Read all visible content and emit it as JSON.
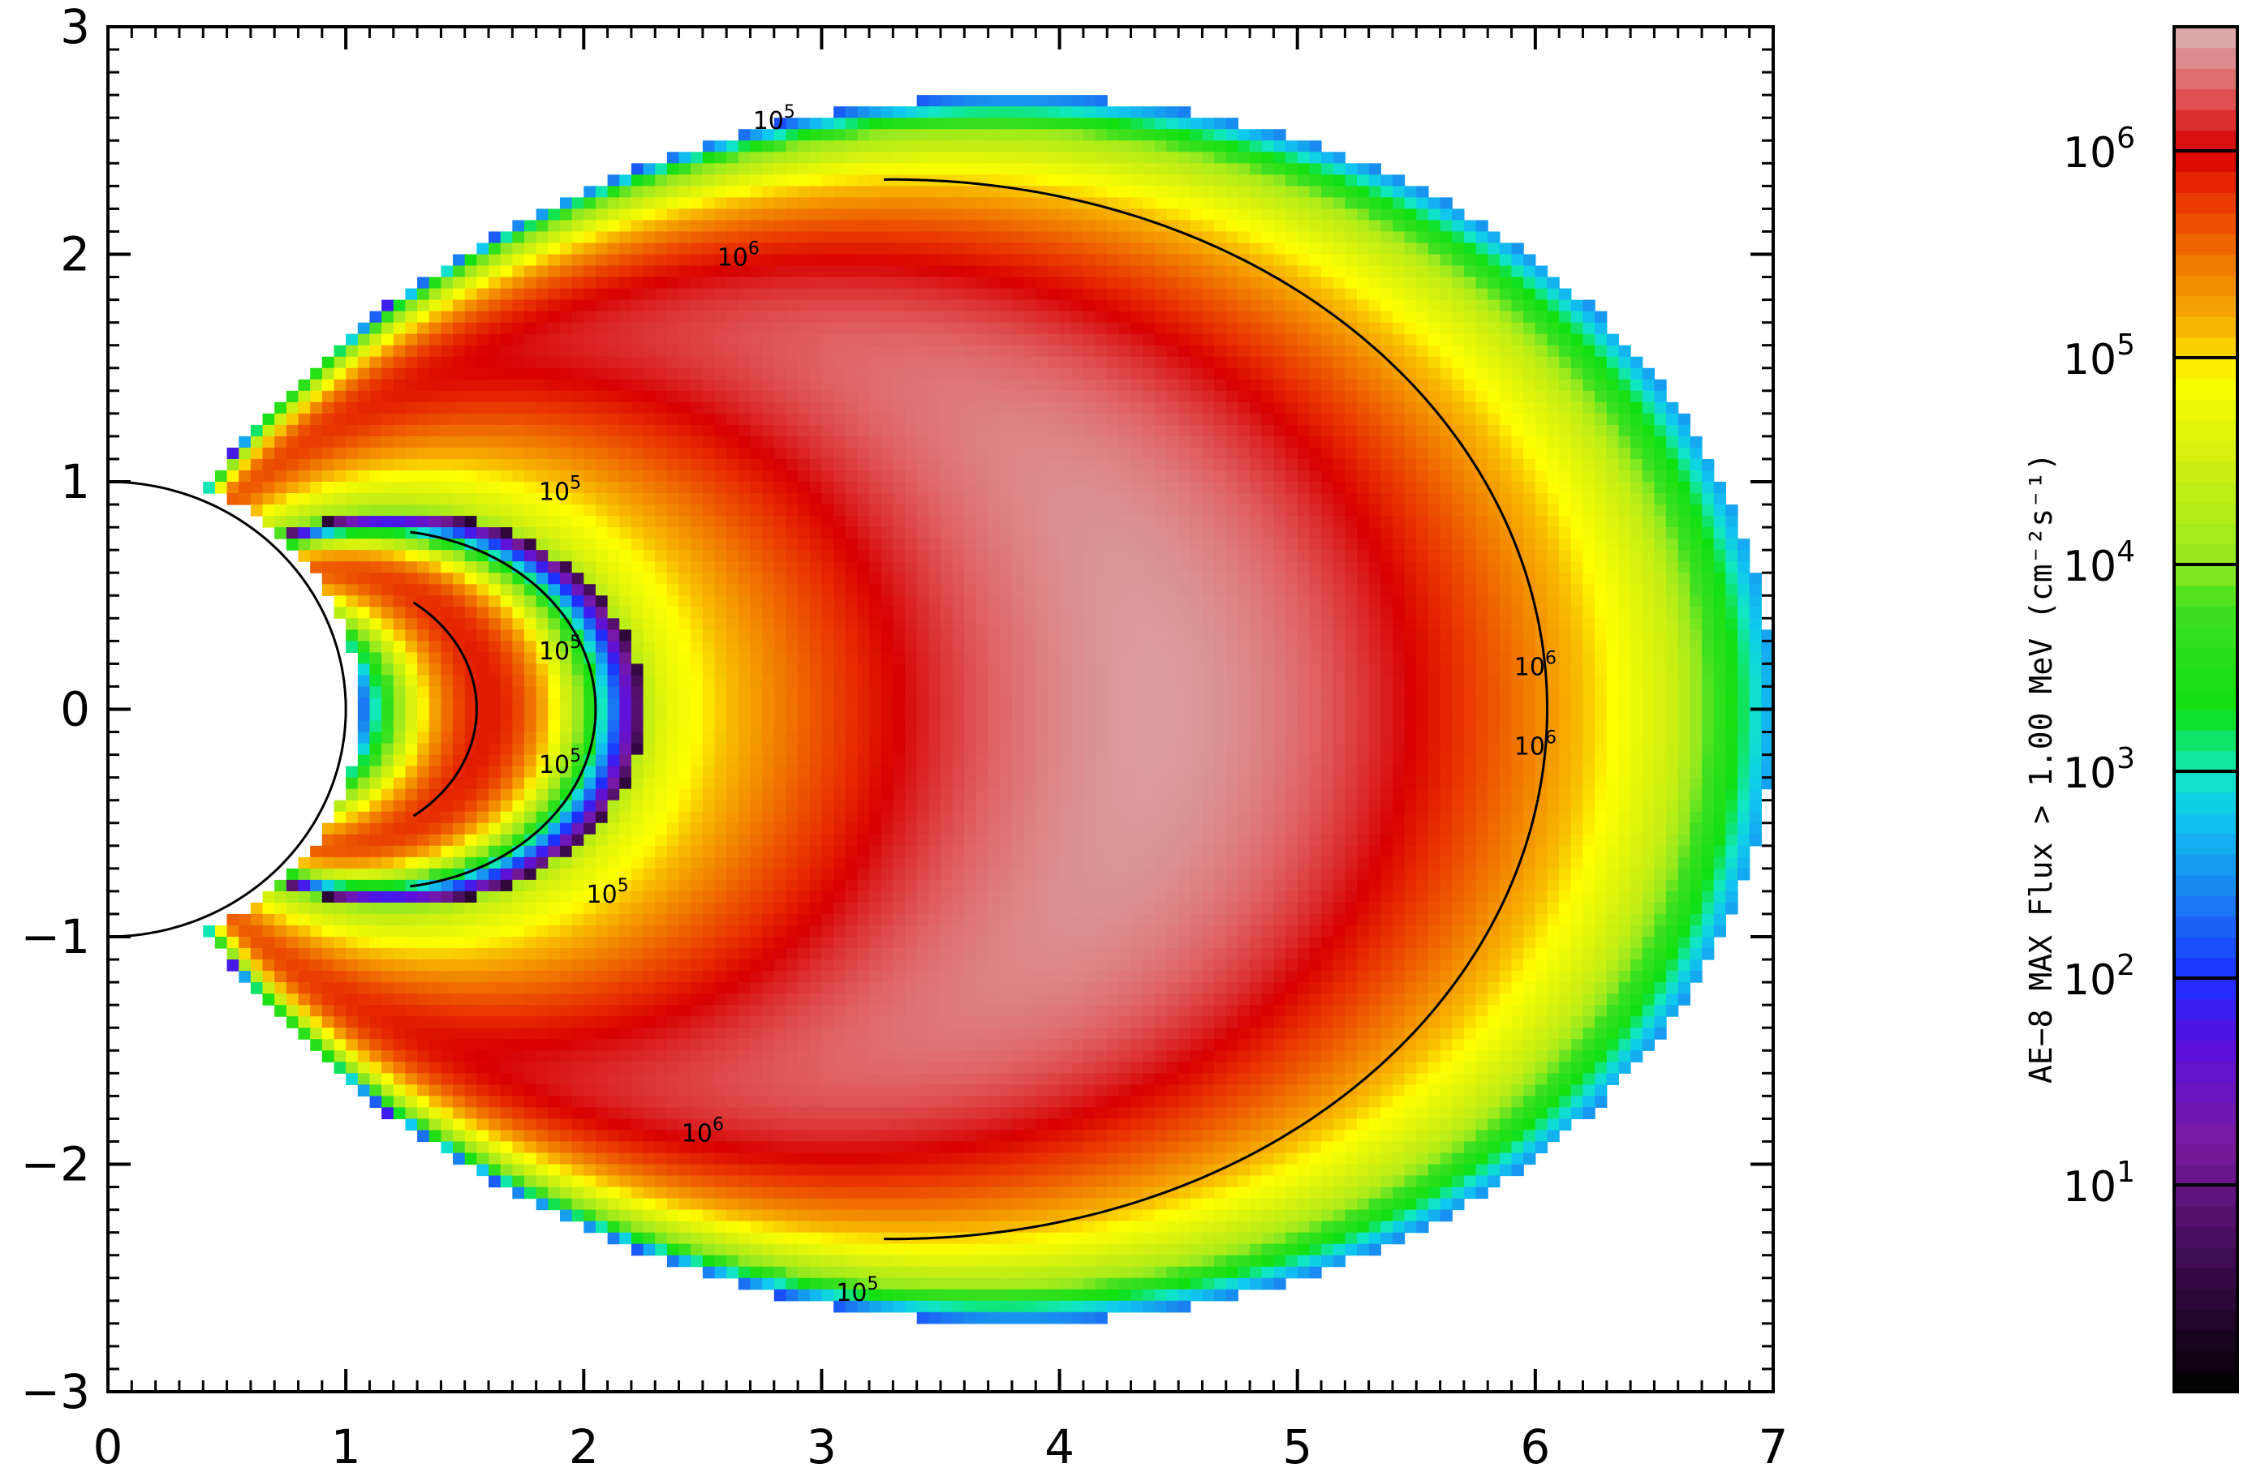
{
  "chart_data": {
    "type": "heatmap",
    "title": "",
    "xlabel": "",
    "ylabel": "",
    "xlim": [
      0,
      7
    ],
    "ylim": [
      -3,
      3
    ],
    "x_ticks": [
      "0",
      "1",
      "2",
      "3",
      "4",
      "5",
      "6",
      "7"
    ],
    "y_ticks": [
      "3",
      "2",
      "1",
      "0",
      "−1",
      "−2",
      "−3"
    ],
    "x_tick_values": [
      0,
      1,
      2,
      3,
      4,
      5,
      6,
      7
    ],
    "y_tick_values": [
      3,
      2,
      1,
      0,
      -1,
      -2,
      -3
    ],
    "colorbar": {
      "label": "AE−8 MAX Flux > 1.00 MeV (cm⁻²s⁻¹)",
      "scale": "log",
      "range_log10": [
        0,
        6.6
      ],
      "ticks": [
        {
          "base": "10",
          "exp": "1",
          "log10": 1
        },
        {
          "base": "10",
          "exp": "2",
          "log10": 2
        },
        {
          "base": "10",
          "exp": "3",
          "log10": 3
        },
        {
          "base": "10",
          "exp": "4",
          "log10": 4
        },
        {
          "base": "10",
          "exp": "5",
          "log10": 5
        },
        {
          "base": "10",
          "exp": "6",
          "log10": 6
        }
      ],
      "stops": [
        {
          "log10": 0.0,
          "color": "#000000"
        },
        {
          "log10": 0.6,
          "color": "#3a0a4a"
        },
        {
          "log10": 1.2,
          "color": "#7a1aa0"
        },
        {
          "log10": 1.7,
          "color": "#5a10e0"
        },
        {
          "log10": 2.0,
          "color": "#1a30ff"
        },
        {
          "log10": 2.4,
          "color": "#1a80f0"
        },
        {
          "log10": 2.8,
          "color": "#10c8f0"
        },
        {
          "log10": 3.0,
          "color": "#10e8c0"
        },
        {
          "log10": 3.3,
          "color": "#10e010"
        },
        {
          "log10": 3.8,
          "color": "#40e020"
        },
        {
          "log10": 4.0,
          "color": "#90e820"
        },
        {
          "log10": 4.5,
          "color": "#d0f010"
        },
        {
          "log10": 4.9,
          "color": "#ffff00"
        },
        {
          "log10": 5.1,
          "color": "#f8c000"
        },
        {
          "log10": 5.5,
          "color": "#f07000"
        },
        {
          "log10": 5.8,
          "color": "#e83000"
        },
        {
          "log10": 6.0,
          "color": "#d80000"
        },
        {
          "log10": 6.3,
          "color": "#e06060"
        },
        {
          "log10": 6.6,
          "color": "#d8b8b8"
        }
      ]
    },
    "model": {
      "outer_L_max": 7.0,
      "inner_L_max": 2.2,
      "slot_L": 2.25,
      "inner_peak_L": 1.6,
      "inner_peak_log10": 5.9,
      "outer_peak_L": 4.4,
      "outer_peak_log10": 6.5,
      "earth_radius": 1.0
    },
    "contours": [
      {
        "level_log10": 5,
        "label": "10⁵"
      },
      {
        "level_log10": 6,
        "label": "10⁶"
      }
    ],
    "contour_labels": [
      {
        "text_base": "10",
        "text_exp": "5",
        "x": 2.8,
        "y": 2.55
      },
      {
        "text_base": "10",
        "text_exp": "6",
        "x": 2.65,
        "y": 1.95
      },
      {
        "text_base": "10",
        "text_exp": "5",
        "x": 1.9,
        "y": 0.92
      },
      {
        "text_base": "10",
        "text_exp": "5",
        "x": 1.9,
        "y": 0.22
      },
      {
        "text_base": "10",
        "text_exp": "5",
        "x": 1.9,
        "y": -0.28
      },
      {
        "text_base": "10",
        "text_exp": "5",
        "x": 2.1,
        "y": -0.85
      },
      {
        "text_base": "10",
        "text_exp": "6",
        "x": 2.5,
        "y": -1.9
      },
      {
        "text_base": "10",
        "text_exp": "5",
        "x": 3.15,
        "y": -2.6
      },
      {
        "text_base": "10",
        "text_exp": "6",
        "x": 6.0,
        "y": 0.15
      },
      {
        "text_base": "10",
        "text_exp": "6",
        "x": 6.0,
        "y": -0.2
      }
    ]
  }
}
